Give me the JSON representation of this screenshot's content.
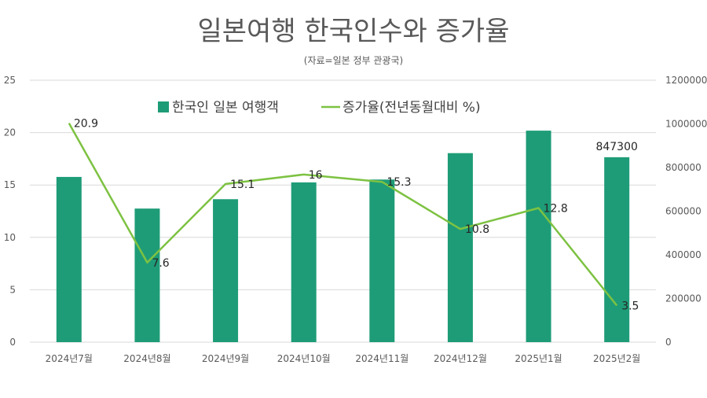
{
  "chart_data": {
    "type": "bar",
    "title": "일본여행 한국인수와 증가율",
    "subtitle": "(자료=일본 정부 관광국)",
    "categories": [
      "2024년7월",
      "2024년8월",
      "2024년9월",
      "2024년10월",
      "2024년11월",
      "2024년12월",
      "2025년1월",
      "2025년2월"
    ],
    "series": [
      {
        "name": "한국인 일본 여행객",
        "type": "bar",
        "axis": "right",
        "color": "#1E9C77",
        "values": [
          757000,
          612000,
          655000,
          732000,
          745000,
          866000,
          969000,
          847300
        ]
      },
      {
        "name": "증가율(전년동월대비 %)",
        "type": "line",
        "axis": "left",
        "color": "#7DC242",
        "values": [
          20.9,
          7.6,
          15.1,
          16,
          15.3,
          10.8,
          12.8,
          3.5
        ]
      }
    ],
    "data_labels": {
      "bar": {
        "2025년2월": "847300"
      },
      "line": [
        "20.9",
        "7.6",
        "15.1",
        "16",
        "15.3",
        "10.8",
        "12.8",
        "3.5"
      ]
    },
    "left_axis": {
      "min": 0,
      "max": 25,
      "ticks": [
        0,
        5,
        10,
        15,
        20,
        25
      ]
    },
    "right_axis": {
      "min": 0,
      "max": 1200000,
      "ticks": [
        0,
        200000,
        400000,
        600000,
        800000,
        1000000,
        1200000
      ]
    },
    "grid": true,
    "legend_position": "top-left"
  }
}
